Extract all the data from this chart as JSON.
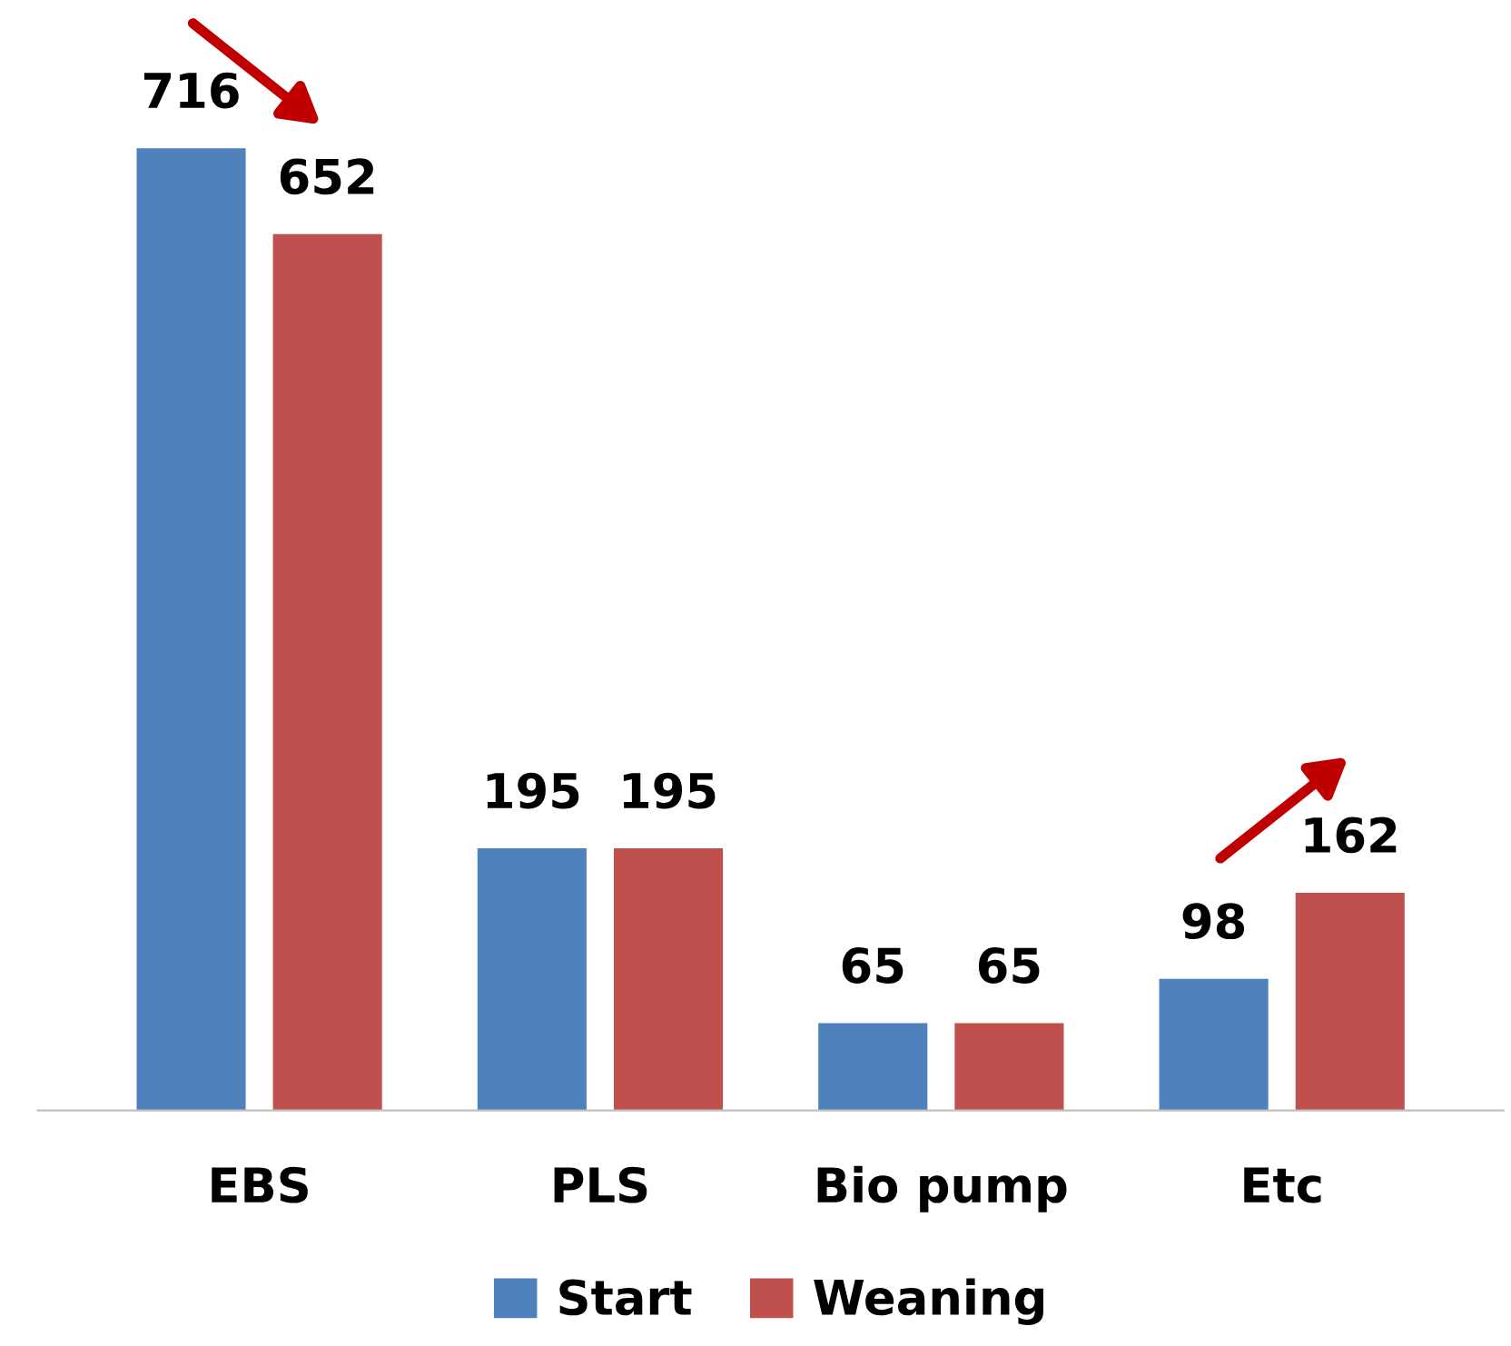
{
  "chart_data": {
    "type": "bar",
    "categories": [
      "EBS",
      "PLS",
      "Bio pump",
      "Etc"
    ],
    "series": [
      {
        "name": "Start",
        "color": "#4f81bd",
        "values": [
          716,
          195,
          65,
          98
        ]
      },
      {
        "name": "Weaning",
        "color": "#c0504d",
        "values": [
          652,
          195,
          65,
          162
        ]
      }
    ],
    "data_labels": true,
    "legend": "bottom",
    "grid": false
  }
}
